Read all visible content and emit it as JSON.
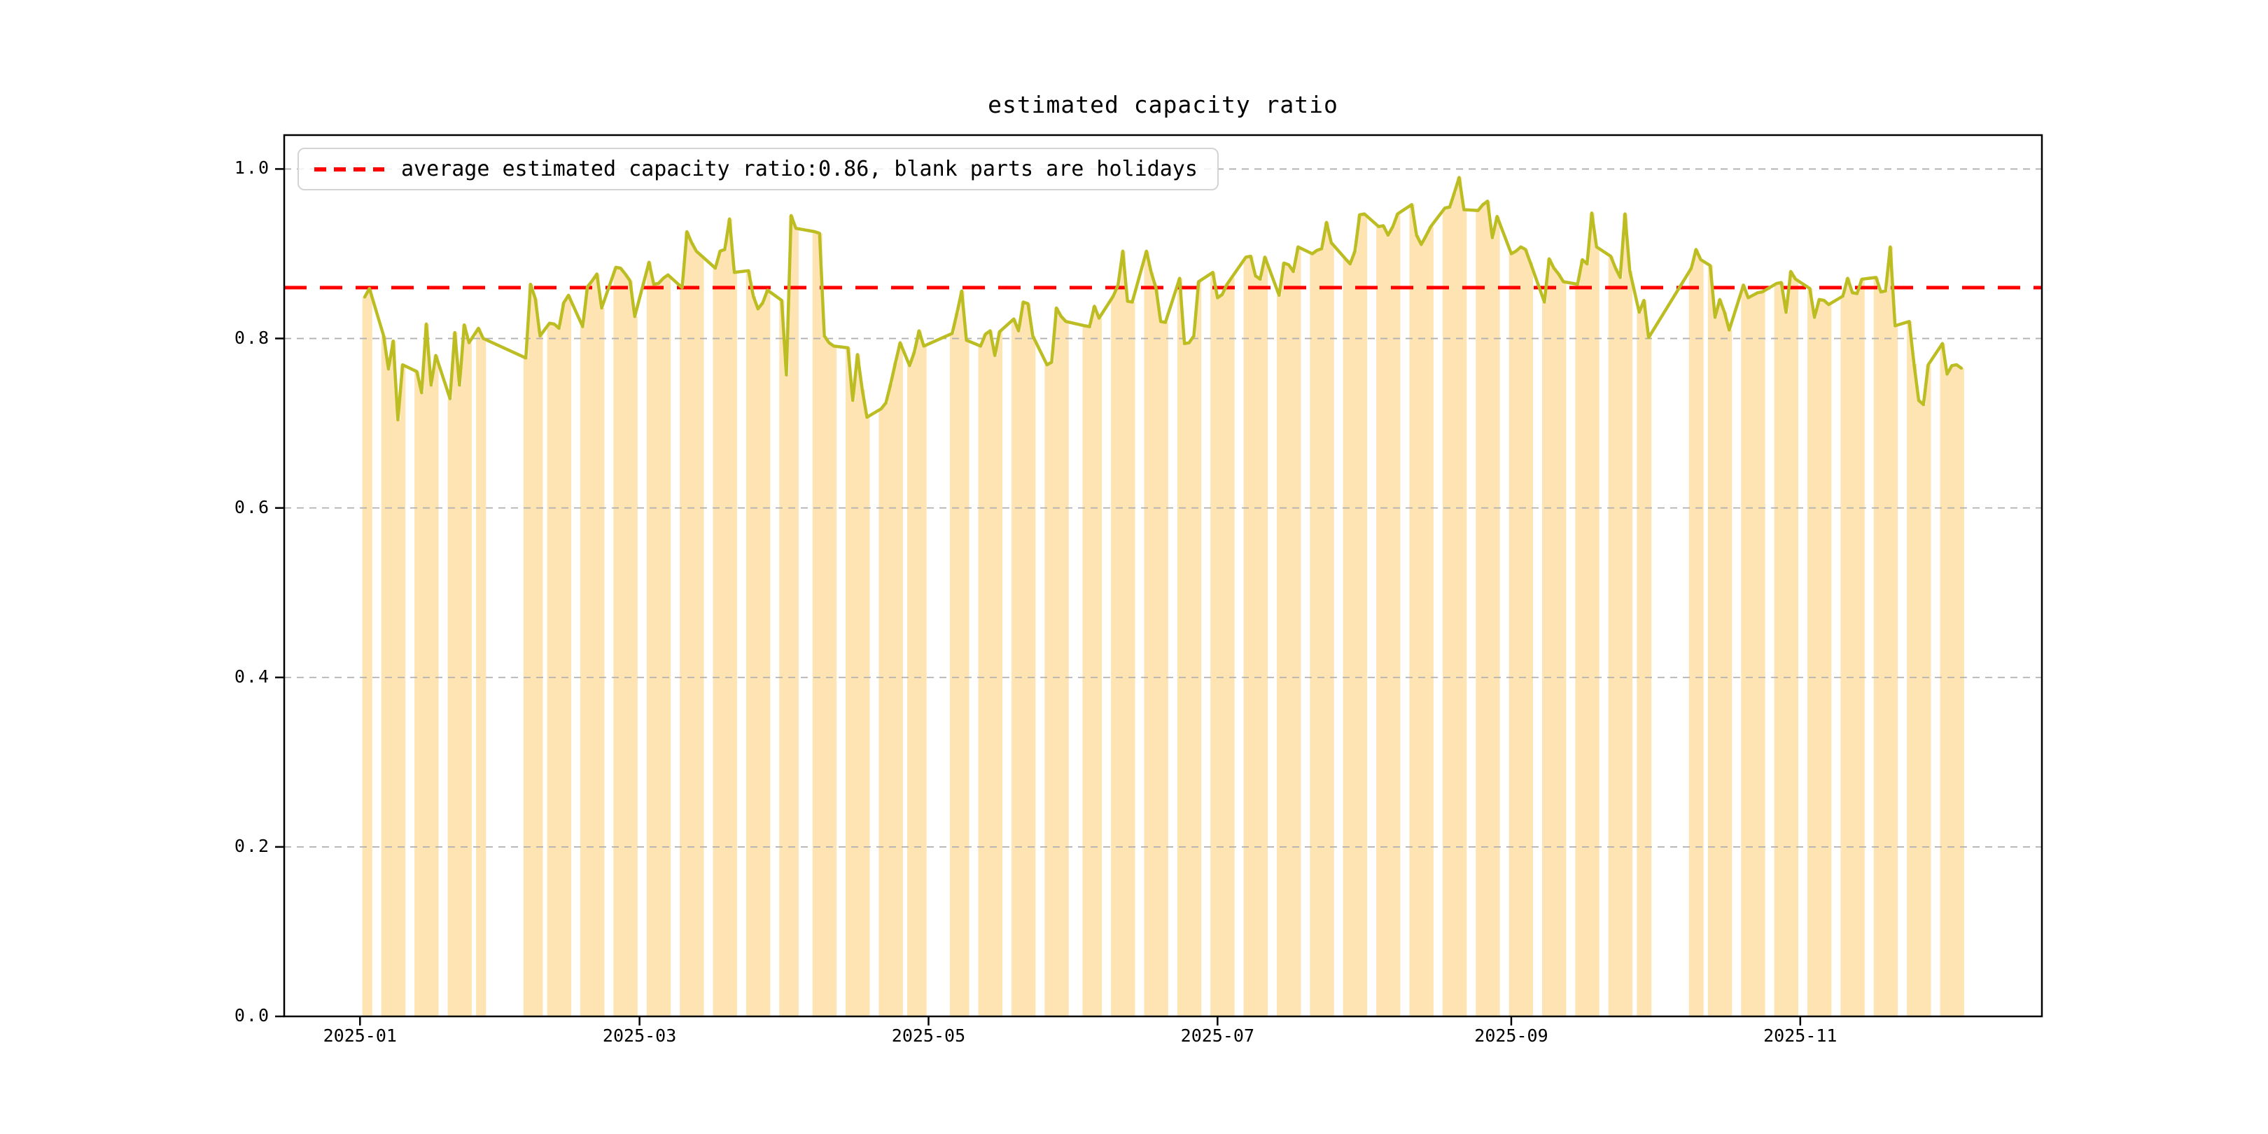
{
  "page": {
    "background": "#ffffff"
  },
  "chart_data": {
    "type": "bar+line",
    "title": "estimated capacity ratio",
    "legend": {
      "label": "average estimated capacity ratio:0.86, blank parts are holidays",
      "swatch_color": "#ff0000",
      "swatch_style": "dashed",
      "position": "upper left"
    },
    "average_line": {
      "value": 0.86,
      "color": "#ff0000",
      "style": "dashed"
    },
    "line_color": "#bcbd22",
    "bar_color": "#ffe4b3",
    "grid": true,
    "grid_color": "#b0b0b0",
    "x_axis": {
      "start": "2024-12-16",
      "end": "2025-12-22",
      "tick_dates": [
        "2025-01-01",
        "2025-03-01",
        "2025-05-01",
        "2025-07-01",
        "2025-09-01",
        "2025-11-01"
      ],
      "tick_labels": [
        "2025-01",
        "2025-03",
        "2025-05",
        "2025-07",
        "2025-09",
        "2025-11"
      ]
    },
    "y_axis": {
      "min": 0,
      "max": 1.04,
      "tick_values": [
        0.0,
        0.2,
        0.4,
        0.6,
        0.8,
        1.0
      ],
      "tick_labels": [
        "0.0",
        "0.2",
        "0.4",
        "0.6",
        "0.8",
        "1.0"
      ]
    },
    "series": [
      [
        "2025-01-02",
        0.849
      ],
      [
        "2025-01-03",
        0.859
      ],
      [
        "2025-01-06",
        0.803
      ],
      [
        "2025-01-07",
        0.764
      ],
      [
        "2025-01-08",
        0.797
      ],
      [
        "2025-01-09",
        0.704
      ],
      [
        "2025-01-10",
        0.769
      ],
      [
        "2025-01-13",
        0.761
      ],
      [
        "2025-01-14",
        0.736
      ],
      [
        "2025-01-15",
        0.817
      ],
      [
        "2025-01-16",
        0.745
      ],
      [
        "2025-01-17",
        0.78
      ],
      [
        "2025-01-20",
        0.729
      ],
      [
        "2025-01-21",
        0.807
      ],
      [
        "2025-01-22",
        0.745
      ],
      [
        "2025-01-23",
        0.816
      ],
      [
        "2025-01-24",
        0.795
      ],
      [
        "2025-01-26",
        0.812
      ],
      [
        "2025-01-27",
        0.8
      ],
      [
        "2025-02-05",
        0.777
      ],
      [
        "2025-02-06",
        0.864
      ],
      [
        "2025-02-07",
        0.847
      ],
      [
        "2025-02-08",
        0.803
      ],
      [
        "2025-02-10",
        0.818
      ],
      [
        "2025-02-11",
        0.817
      ],
      [
        "2025-02-12",
        0.812
      ],
      [
        "2025-02-13",
        0.842
      ],
      [
        "2025-02-14",
        0.851
      ],
      [
        "2025-02-17",
        0.814
      ],
      [
        "2025-02-18",
        0.861
      ],
      [
        "2025-02-19",
        0.868
      ],
      [
        "2025-02-20",
        0.876
      ],
      [
        "2025-02-21",
        0.836
      ],
      [
        "2025-02-24",
        0.884
      ],
      [
        "2025-02-25",
        0.883
      ],
      [
        "2025-02-26",
        0.876
      ],
      [
        "2025-02-27",
        0.868
      ],
      [
        "2025-02-28",
        0.826
      ],
      [
        "2025-03-03",
        0.89
      ],
      [
        "2025-03-04",
        0.864
      ],
      [
        "2025-03-05",
        0.865
      ],
      [
        "2025-03-06",
        0.871
      ],
      [
        "2025-03-07",
        0.875
      ],
      [
        "2025-03-10",
        0.86
      ],
      [
        "2025-03-11",
        0.926
      ],
      [
        "2025-03-12",
        0.913
      ],
      [
        "2025-03-13",
        0.903
      ],
      [
        "2025-03-14",
        0.898
      ],
      [
        "2025-03-17",
        0.883
      ],
      [
        "2025-03-18",
        0.903
      ],
      [
        "2025-03-19",
        0.905
      ],
      [
        "2025-03-20",
        0.941
      ],
      [
        "2025-03-21",
        0.878
      ],
      [
        "2025-03-24",
        0.88
      ],
      [
        "2025-03-25",
        0.85
      ],
      [
        "2025-03-26",
        0.835
      ],
      [
        "2025-03-27",
        0.842
      ],
      [
        "2025-03-28",
        0.857
      ],
      [
        "2025-03-31",
        0.845
      ],
      [
        "2025-04-01",
        0.757
      ],
      [
        "2025-04-02",
        0.945
      ],
      [
        "2025-04-03",
        0.93
      ],
      [
        "2025-04-07",
        0.926
      ],
      [
        "2025-04-08",
        0.924
      ],
      [
        "2025-04-09",
        0.803
      ],
      [
        "2025-04-10",
        0.795
      ],
      [
        "2025-04-11",
        0.791
      ],
      [
        "2025-04-14",
        0.789
      ],
      [
        "2025-04-15",
        0.727
      ],
      [
        "2025-04-16",
        0.781
      ],
      [
        "2025-04-17",
        0.74
      ],
      [
        "2025-04-18",
        0.707
      ],
      [
        "2025-04-21",
        0.717
      ],
      [
        "2025-04-22",
        0.724
      ],
      [
        "2025-04-23",
        0.746
      ],
      [
        "2025-04-24",
        0.771
      ],
      [
        "2025-04-25",
        0.795
      ],
      [
        "2025-04-27",
        0.768
      ],
      [
        "2025-04-28",
        0.784
      ],
      [
        "2025-04-29",
        0.809
      ],
      [
        "2025-04-30",
        0.791
      ],
      [
        "2025-05-06",
        0.806
      ],
      [
        "2025-05-07",
        0.83
      ],
      [
        "2025-05-08",
        0.856
      ],
      [
        "2025-05-09",
        0.798
      ],
      [
        "2025-05-12",
        0.791
      ],
      [
        "2025-05-13",
        0.805
      ],
      [
        "2025-05-14",
        0.809
      ],
      [
        "2025-05-15",
        0.78
      ],
      [
        "2025-05-16",
        0.808
      ],
      [
        "2025-05-19",
        0.823
      ],
      [
        "2025-05-20",
        0.809
      ],
      [
        "2025-05-21",
        0.843
      ],
      [
        "2025-05-22",
        0.841
      ],
      [
        "2025-05-23",
        0.803
      ],
      [
        "2025-05-26",
        0.769
      ],
      [
        "2025-05-27",
        0.772
      ],
      [
        "2025-05-28",
        0.836
      ],
      [
        "2025-05-29",
        0.826
      ],
      [
        "2025-05-30",
        0.82
      ],
      [
        "2025-06-03",
        0.815
      ],
      [
        "2025-06-04",
        0.814
      ],
      [
        "2025-06-05",
        0.838
      ],
      [
        "2025-06-06",
        0.824
      ],
      [
        "2025-06-09",
        0.85
      ],
      [
        "2025-06-10",
        0.863
      ],
      [
        "2025-06-11",
        0.903
      ],
      [
        "2025-06-12",
        0.844
      ],
      [
        "2025-06-13",
        0.843
      ],
      [
        "2025-06-16",
        0.903
      ],
      [
        "2025-06-17",
        0.878
      ],
      [
        "2025-06-18",
        0.86
      ],
      [
        "2025-06-19",
        0.82
      ],
      [
        "2025-06-20",
        0.819
      ],
      [
        "2025-06-23",
        0.871
      ],
      [
        "2025-06-24",
        0.794
      ],
      [
        "2025-06-25",
        0.795
      ],
      [
        "2025-06-26",
        0.803
      ],
      [
        "2025-06-27",
        0.867
      ],
      [
        "2025-06-30",
        0.878
      ],
      [
        "2025-07-01",
        0.848
      ],
      [
        "2025-07-02",
        0.852
      ],
      [
        "2025-07-03",
        0.864
      ],
      [
        "2025-07-04",
        0.872
      ],
      [
        "2025-07-07",
        0.896
      ],
      [
        "2025-07-08",
        0.897
      ],
      [
        "2025-07-09",
        0.874
      ],
      [
        "2025-07-10",
        0.87
      ],
      [
        "2025-07-11",
        0.896
      ],
      [
        "2025-07-14",
        0.851
      ],
      [
        "2025-07-15",
        0.889
      ],
      [
        "2025-07-16",
        0.887
      ],
      [
        "2025-07-17",
        0.879
      ],
      [
        "2025-07-18",
        0.908
      ],
      [
        "2025-07-21",
        0.9
      ],
      [
        "2025-07-22",
        0.904
      ],
      [
        "2025-07-23",
        0.906
      ],
      [
        "2025-07-24",
        0.937
      ],
      [
        "2025-07-25",
        0.913
      ],
      [
        "2025-07-28",
        0.894
      ],
      [
        "2025-07-29",
        0.888
      ],
      [
        "2025-07-30",
        0.903
      ],
      [
        "2025-07-31",
        0.946
      ],
      [
        "2025-08-01",
        0.947
      ],
      [
        "2025-08-04",
        0.932
      ],
      [
        "2025-08-05",
        0.933
      ],
      [
        "2025-08-06",
        0.922
      ],
      [
        "2025-08-07",
        0.932
      ],
      [
        "2025-08-08",
        0.947
      ],
      [
        "2025-08-11",
        0.958
      ],
      [
        "2025-08-12",
        0.922
      ],
      [
        "2025-08-13",
        0.911
      ],
      [
        "2025-08-14",
        0.921
      ],
      [
        "2025-08-15",
        0.932
      ],
      [
        "2025-08-18",
        0.954
      ],
      [
        "2025-08-19",
        0.955
      ],
      [
        "2025-08-20",
        0.972
      ],
      [
        "2025-08-21",
        0.99
      ],
      [
        "2025-08-22",
        0.952
      ],
      [
        "2025-08-25",
        0.951
      ],
      [
        "2025-08-26",
        0.958
      ],
      [
        "2025-08-27",
        0.962
      ],
      [
        "2025-08-28",
        0.919
      ],
      [
        "2025-08-29",
        0.944
      ],
      [
        "2025-09-01",
        0.9
      ],
      [
        "2025-09-02",
        0.903
      ],
      [
        "2025-09-03",
        0.908
      ],
      [
        "2025-09-04",
        0.905
      ],
      [
        "2025-09-05",
        0.89
      ],
      [
        "2025-09-08",
        0.843
      ],
      [
        "2025-09-09",
        0.894
      ],
      [
        "2025-09-10",
        0.883
      ],
      [
        "2025-09-11",
        0.876
      ],
      [
        "2025-09-12",
        0.867
      ],
      [
        "2025-09-15",
        0.864
      ],
      [
        "2025-09-16",
        0.893
      ],
      [
        "2025-09-17",
        0.888
      ],
      [
        "2025-09-18",
        0.948
      ],
      [
        "2025-09-19",
        0.908
      ],
      [
        "2025-09-22",
        0.897
      ],
      [
        "2025-09-23",
        0.883
      ],
      [
        "2025-09-24",
        0.872
      ],
      [
        "2025-09-25",
        0.947
      ],
      [
        "2025-09-26",
        0.88
      ],
      [
        "2025-09-28",
        0.831
      ],
      [
        "2025-09-29",
        0.845
      ],
      [
        "2025-09-30",
        0.801
      ],
      [
        "2025-10-09",
        0.883
      ],
      [
        "2025-10-10",
        0.905
      ],
      [
        "2025-10-11",
        0.893
      ],
      [
        "2025-10-13",
        0.886
      ],
      [
        "2025-10-14",
        0.825
      ],
      [
        "2025-10-15",
        0.846
      ],
      [
        "2025-10-16",
        0.831
      ],
      [
        "2025-10-17",
        0.81
      ],
      [
        "2025-10-20",
        0.863
      ],
      [
        "2025-10-21",
        0.848
      ],
      [
        "2025-10-22",
        0.851
      ],
      [
        "2025-10-23",
        0.854
      ],
      [
        "2025-10-24",
        0.855
      ],
      [
        "2025-10-27",
        0.865
      ],
      [
        "2025-10-28",
        0.866
      ],
      [
        "2025-10-29",
        0.831
      ],
      [
        "2025-10-30",
        0.879
      ],
      [
        "2025-10-31",
        0.87
      ],
      [
        "2025-11-03",
        0.859
      ],
      [
        "2025-11-04",
        0.825
      ],
      [
        "2025-11-05",
        0.846
      ],
      [
        "2025-11-06",
        0.845
      ],
      [
        "2025-11-07",
        0.84
      ],
      [
        "2025-11-10",
        0.85
      ],
      [
        "2025-11-11",
        0.871
      ],
      [
        "2025-11-12",
        0.854
      ],
      [
        "2025-11-13",
        0.853
      ],
      [
        "2025-11-14",
        0.87
      ],
      [
        "2025-11-17",
        0.872
      ],
      [
        "2025-11-18",
        0.855
      ],
      [
        "2025-11-19",
        0.856
      ],
      [
        "2025-11-20",
        0.908
      ],
      [
        "2025-11-21",
        0.815
      ],
      [
        "2025-11-24",
        0.82
      ],
      [
        "2025-11-25",
        0.77
      ],
      [
        "2025-11-26",
        0.727
      ],
      [
        "2025-11-27",
        0.722
      ],
      [
        "2025-11-28",
        0.769
      ],
      [
        "2025-12-01",
        0.794
      ],
      [
        "2025-12-02",
        0.758
      ],
      [
        "2025-12-03",
        0.768
      ],
      [
        "2025-12-04",
        0.769
      ],
      [
        "2025-12-05",
        0.765
      ]
    ]
  }
}
